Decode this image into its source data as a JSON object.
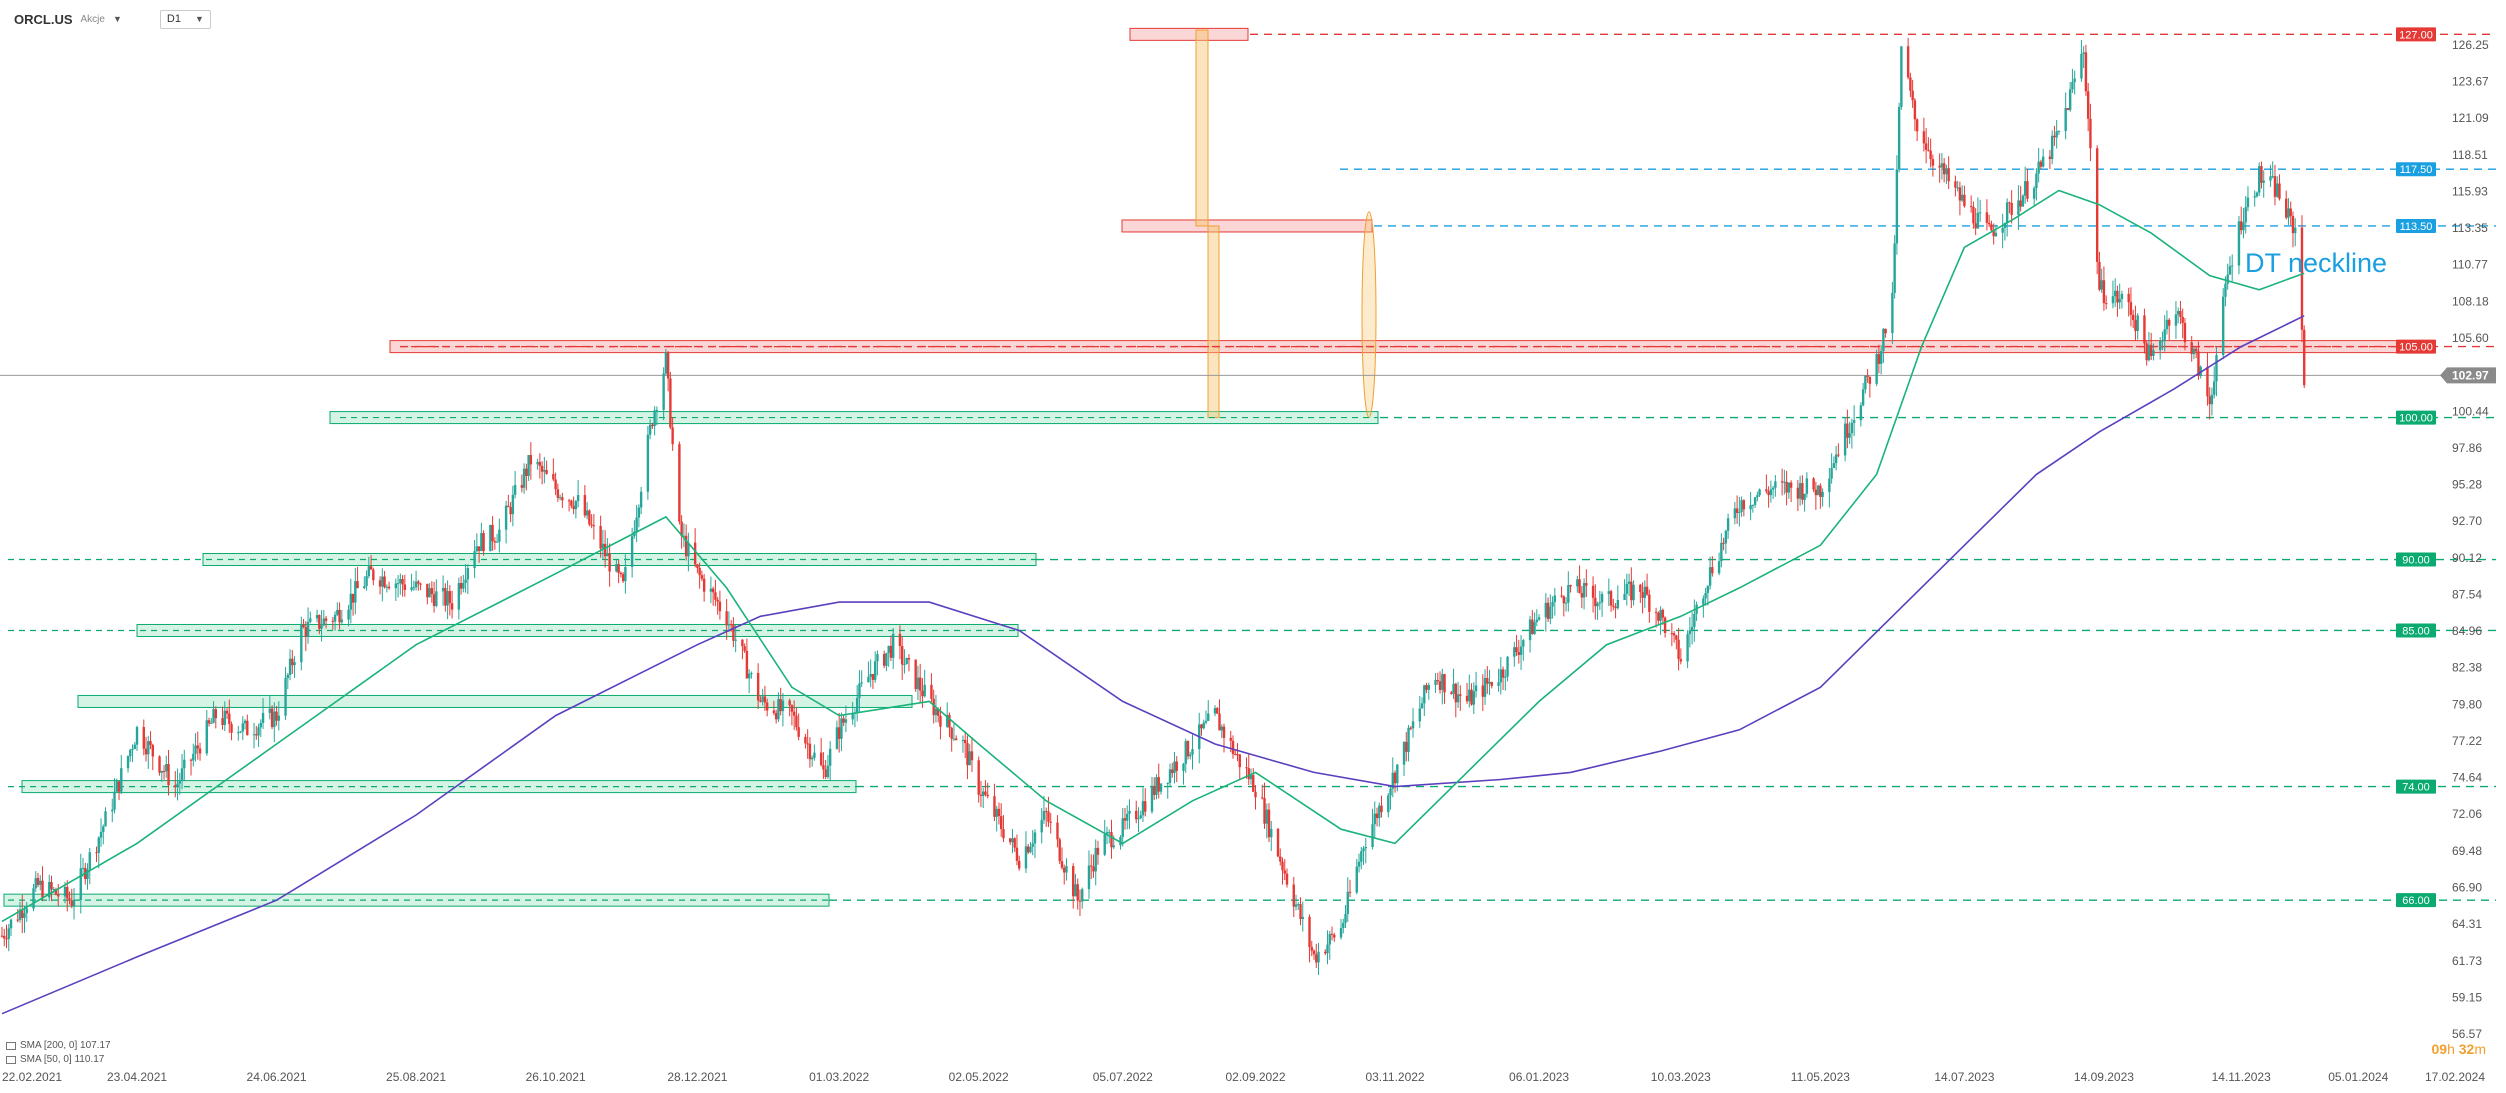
{
  "header": {
    "symbol": "ORCL.US",
    "instrument_type": "Akcje",
    "timeframe": "D1"
  },
  "legend": [
    {
      "label": "SMA [200, 0] 107.17"
    },
    {
      "label": "SMA [50, 0] 110.17"
    }
  ],
  "countdown": {
    "hours": "09",
    "h_unit": "h",
    "minutes": "32",
    "m_unit": "m"
  },
  "annotation": {
    "text": "DT neckline"
  },
  "colors": {
    "up": "#26a69a",
    "down": "#e53935",
    "sma50": "#1ab37a",
    "sma200": "#5b3fbf",
    "zone_green": "#c8f0dc",
    "zone_red": "#f8c8c8",
    "resist_red": "#e53935",
    "support_green": "#0aaa70",
    "blue_level": "#1a9fe0",
    "orange": "#f0a030"
  },
  "chart_data": {
    "type": "candlestick",
    "x_ticks": [
      "22.02.2021",
      "23.04.2021",
      "24.06.2021",
      "25.08.2021",
      "26.10.2021",
      "28.12.2021",
      "01.03.2022",
      "02.05.2022",
      "05.07.2022",
      "02.09.2022",
      "03.11.2022",
      "06.01.2023",
      "10.03.2023",
      "11.05.2023",
      "14.07.2023",
      "14.09.2023",
      "14.11.2023",
      "05.01.2024",
      "17.02.2024"
    ],
    "y_ticks": [
      "126.25",
      "123.67",
      "121.09",
      "118.51",
      "115.93",
      "113.35",
      "110.77",
      "108.18",
      "105.60",
      "103.02",
      "100.44",
      "97.86",
      "95.28",
      "92.70",
      "90.12",
      "87.54",
      "84.96",
      "82.38",
      "79.80",
      "77.22",
      "74.64",
      "72.06",
      "69.48",
      "66.90",
      "64.31",
      "61.73",
      "59.15",
      "56.57"
    ],
    "ylim": [
      56.57,
      127.5
    ],
    "last_price": "102.97",
    "levels": [
      {
        "value": 127.0,
        "label": "127.00",
        "kind": "resistance"
      },
      {
        "value": 117.5,
        "label": "117.50",
        "kind": "blue"
      },
      {
        "value": 113.5,
        "label": "113.50",
        "kind": "blue"
      },
      {
        "value": 105.0,
        "label": "105.00",
        "kind": "resistance"
      },
      {
        "value": 100.0,
        "label": "100.00",
        "kind": "support"
      },
      {
        "value": 90.0,
        "label": "90.00",
        "kind": "support"
      },
      {
        "value": 85.0,
        "label": "85.00",
        "kind": "support"
      },
      {
        "value": 74.0,
        "label": "74.00",
        "kind": "support"
      },
      {
        "value": 66.0,
        "label": "66.00",
        "kind": "support"
      }
    ],
    "price_path": [
      [
        "2021-02-22",
        63.5
      ],
      [
        "2021-03-10",
        67
      ],
      [
        "2021-03-25",
        66
      ],
      [
        "2021-04-10",
        72
      ],
      [
        "2021-04-23",
        78
      ],
      [
        "2021-05-10",
        74
      ],
      [
        "2021-05-28",
        79
      ],
      [
        "2021-06-10",
        78
      ],
      [
        "2021-06-24",
        79
      ],
      [
        "2021-07-05",
        85
      ],
      [
        "2021-07-20",
        86
      ],
      [
        "2021-08-05",
        89
      ],
      [
        "2021-08-25",
        88
      ],
      [
        "2021-09-10",
        87
      ],
      [
        "2021-09-20",
        91
      ],
      [
        "2021-10-01",
        92
      ],
      [
        "2021-10-15",
        97
      ],
      [
        "2021-10-26",
        95
      ],
      [
        "2021-11-05",
        94
      ],
      [
        "2021-11-25",
        88
      ],
      [
        "2021-12-08",
        100
      ],
      [
        "2021-12-14",
        104
      ],
      [
        "2021-12-20",
        92
      ],
      [
        "2021-12-28",
        89
      ],
      [
        "2022-01-10",
        86
      ],
      [
        "2022-01-25",
        80
      ],
      [
        "2022-02-08",
        79
      ],
      [
        "2022-02-22",
        75
      ],
      [
        "2022-03-01",
        78
      ],
      [
        "2022-03-15",
        82
      ],
      [
        "2022-03-25",
        84
      ],
      [
        "2022-04-10",
        80
      ],
      [
        "2022-04-25",
        77
      ],
      [
        "2022-05-02",
        74
      ],
      [
        "2022-05-20",
        69
      ],
      [
        "2022-06-01",
        72
      ],
      [
        "2022-06-15",
        66
      ],
      [
        "2022-06-25",
        70
      ],
      [
        "2022-07-05",
        71
      ],
      [
        "2022-07-25",
        75
      ],
      [
        "2022-08-05",
        77
      ],
      [
        "2022-08-15",
        79
      ],
      [
        "2022-08-25",
        76
      ],
      [
        "2022-09-02",
        74
      ],
      [
        "2022-09-15",
        68
      ],
      [
        "2022-09-28",
        62
      ],
      [
        "2022-10-10",
        64
      ],
      [
        "2022-10-20",
        70
      ],
      [
        "2022-11-03",
        75
      ],
      [
        "2022-11-20",
        82
      ],
      [
        "2022-12-05",
        80
      ],
      [
        "2022-12-20",
        82
      ],
      [
        "2023-01-06",
        86
      ],
      [
        "2023-01-20",
        88
      ],
      [
        "2023-02-05",
        87
      ],
      [
        "2023-02-20",
        88
      ],
      [
        "2023-03-01",
        86
      ],
      [
        "2023-03-10",
        83
      ],
      [
        "2023-03-20",
        88
      ],
      [
        "2023-04-05",
        94
      ],
      [
        "2023-04-20",
        95
      ],
      [
        "2023-05-11",
        95
      ],
      [
        "2023-05-25",
        100
      ],
      [
        "2023-06-05",
        104
      ],
      [
        "2023-06-12",
        108
      ],
      [
        "2023-06-16",
        126
      ],
      [
        "2023-06-22",
        121
      ],
      [
        "2023-07-01",
        118
      ],
      [
        "2023-07-14",
        115
      ],
      [
        "2023-07-25",
        113
      ],
      [
        "2023-08-05",
        115
      ],
      [
        "2023-08-15",
        117
      ],
      [
        "2023-08-25",
        120
      ],
      [
        "2023-09-05",
        126
      ],
      [
        "2023-09-12",
        109
      ],
      [
        "2023-09-25",
        108
      ],
      [
        "2023-10-05",
        104
      ],
      [
        "2023-10-15",
        108
      ],
      [
        "2023-10-25",
        104
      ],
      [
        "2023-10-31",
        101
      ],
      [
        "2023-11-08",
        110
      ],
      [
        "2023-11-14",
        114
      ],
      [
        "2023-11-22",
        117
      ],
      [
        "2023-11-30",
        116
      ],
      [
        "2023-12-05",
        114
      ],
      [
        "2023-12-09",
        113
      ],
      [
        "2023-12-12",
        103
      ]
    ],
    "sma50_path": [
      [
        "2021-02-22",
        64.5
      ],
      [
        "2021-04-23",
        70
      ],
      [
        "2021-06-24",
        77
      ],
      [
        "2021-08-25",
        84
      ],
      [
        "2021-10-26",
        89
      ],
      [
        "2021-12-14",
        93
      ],
      [
        "2022-01-10",
        88
      ],
      [
        "2022-02-08",
        81
      ],
      [
        "2022-03-01",
        79
      ],
      [
        "2022-04-10",
        80
      ],
      [
        "2022-05-02",
        77
      ],
      [
        "2022-06-01",
        73
      ],
      [
        "2022-07-05",
        70
      ],
      [
        "2022-08-05",
        73
      ],
      [
        "2022-09-02",
        75
      ],
      [
        "2022-10-10",
        71
      ],
      [
        "2022-11-03",
        70
      ],
      [
        "2022-12-05",
        75
      ],
      [
        "2023-01-06",
        80
      ],
      [
        "2023-02-05",
        84
      ],
      [
        "2023-03-10",
        86
      ],
      [
        "2023-04-05",
        88
      ],
      [
        "2023-05-11",
        91
      ],
      [
        "2023-06-05",
        96
      ],
      [
        "2023-06-25",
        105
      ],
      [
        "2023-07-14",
        112
      ],
      [
        "2023-08-05",
        114
      ],
      [
        "2023-08-25",
        116
      ],
      [
        "2023-09-12",
        115
      ],
      [
        "2023-10-05",
        113
      ],
      [
        "2023-10-31",
        110
      ],
      [
        "2023-11-22",
        109
      ],
      [
        "2023-12-12",
        110.17
      ]
    ],
    "sma200_path": [
      [
        "2021-02-22",
        58
      ],
      [
        "2021-04-23",
        62
      ],
      [
        "2021-06-24",
        66
      ],
      [
        "2021-08-25",
        72
      ],
      [
        "2021-10-26",
        79
      ],
      [
        "2021-12-28",
        84
      ],
      [
        "2022-01-25",
        86
      ],
      [
        "2022-03-01",
        87
      ],
      [
        "2022-04-10",
        87
      ],
      [
        "2022-05-20",
        85
      ],
      [
        "2022-07-05",
        80
      ],
      [
        "2022-08-15",
        77
      ],
      [
        "2022-09-28",
        75
      ],
      [
        "2022-11-03",
        74
      ],
      [
        "2022-12-20",
        74.5
      ],
      [
        "2023-01-20",
        75
      ],
      [
        "2023-03-01",
        76.5
      ],
      [
        "2023-04-05",
        78
      ],
      [
        "2023-05-11",
        81
      ],
      [
        "2023-06-12",
        86
      ],
      [
        "2023-07-14",
        91
      ],
      [
        "2023-08-15",
        96
      ],
      [
        "2023-09-12",
        99
      ],
      [
        "2023-10-15",
        102
      ],
      [
        "2023-11-14",
        105
      ],
      [
        "2023-12-12",
        107.17
      ]
    ]
  }
}
